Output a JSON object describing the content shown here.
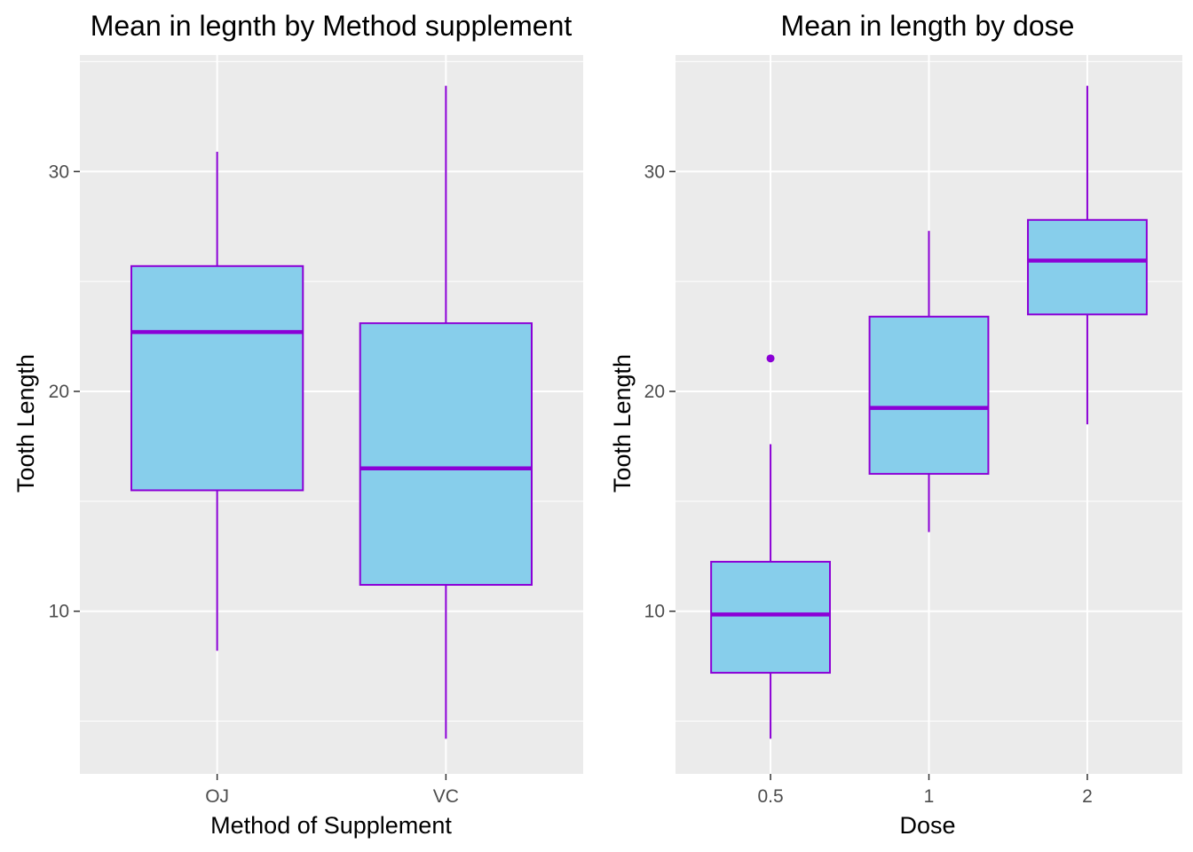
{
  "colors": {
    "panel_bg": "#EBEBEB",
    "grid": "#FFFFFF",
    "box_fill": "#87CEEB",
    "box_stroke": "#8B00D6",
    "tick": "#333333"
  },
  "chart_data": [
    {
      "type": "box",
      "title": "Mean in legnth by Method supplement",
      "xlabel": "Method of Supplement",
      "ylabel": "Tooth Length",
      "ylim": [
        2.6,
        35.3
      ],
      "yticks": [
        10,
        20,
        30
      ],
      "ytick_labels": [
        "10",
        "20",
        "30"
      ],
      "yminor": [
        5,
        15,
        25,
        35
      ],
      "grid": true,
      "categories": [
        "OJ",
        "VC"
      ],
      "boxes": [
        {
          "label": "OJ",
          "lower_whisker": 8.2,
          "q1": 15.5,
          "median": 22.7,
          "q3": 25.7,
          "upper_whisker": 30.9,
          "outliers": []
        },
        {
          "label": "VC",
          "lower_whisker": 4.2,
          "q1": 11.2,
          "median": 16.5,
          "q3": 23.1,
          "upper_whisker": 33.9,
          "outliers": []
        }
      ]
    },
    {
      "type": "box",
      "title": "Mean in length by dose",
      "xlabel": "Dose",
      "ylabel": "Tooth Length",
      "ylim": [
        2.6,
        35.3
      ],
      "yticks": [
        10,
        20,
        30
      ],
      "ytick_labels": [
        "10",
        "20",
        "30"
      ],
      "yminor": [
        5,
        15,
        25,
        35
      ],
      "grid": true,
      "categories": [
        "0.5",
        "1",
        "2"
      ],
      "boxes": [
        {
          "label": "0.5",
          "lower_whisker": 4.2,
          "q1": 7.2,
          "median": 9.85,
          "q3": 12.25,
          "upper_whisker": 17.6,
          "outliers": [
            21.5
          ]
        },
        {
          "label": "1",
          "lower_whisker": 13.6,
          "q1": 16.25,
          "median": 19.25,
          "q3": 23.4,
          "upper_whisker": 27.3,
          "outliers": []
        },
        {
          "label": "2",
          "lower_whisker": 18.5,
          "q1": 23.5,
          "median": 25.95,
          "q3": 27.8,
          "upper_whisker": 33.9,
          "outliers": []
        }
      ]
    }
  ]
}
